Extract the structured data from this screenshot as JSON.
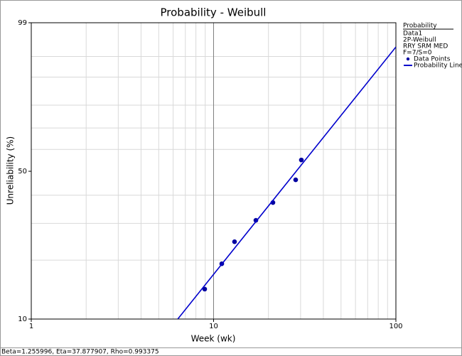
{
  "chart_data": {
    "type": "scatter",
    "title": "Probability - Weibull",
    "x_label": "Week (wk)",
    "y_label": "Unreliability (%)",
    "x_scale": "log",
    "y_scale": "weibull",
    "xlim": [
      1,
      100
    ],
    "xticks": [
      1,
      10,
      100
    ],
    "xgrid": [
      2,
      3,
      4,
      5,
      6,
      7,
      8,
      9,
      20,
      30,
      40,
      50,
      60,
      70,
      80,
      90
    ],
    "ylim": [
      10,
      99
    ],
    "yticks": [
      10,
      50,
      99
    ],
    "ygrid": [
      20,
      30,
      40,
      60,
      70,
      80,
      90,
      95
    ],
    "grid": true,
    "series": [
      {
        "name": "Data Points",
        "mode": "markers",
        "color": "#0000a0",
        "x": [
          8.94,
          11.09,
          13.03,
          17.06,
          21.16,
          28.2,
          30.3
        ],
        "values": [
          14.3,
          19.2,
          24.6,
          31.0,
          37.2,
          46.3,
          55.1
        ]
      },
      {
        "name": "Probability Line",
        "mode": "line",
        "color": "#0000cc",
        "x": [
          6.36,
          100
        ],
        "values": [
          10,
          96.6
        ]
      }
    ],
    "legend": {
      "title": "Probability",
      "lines": [
        "Data1",
        "2P-Weibull",
        "RRY SRM  MED",
        "F=7/S=0"
      ]
    },
    "footer": "Beta=1.255996, Eta=37.877907, Rho=0.993375"
  }
}
